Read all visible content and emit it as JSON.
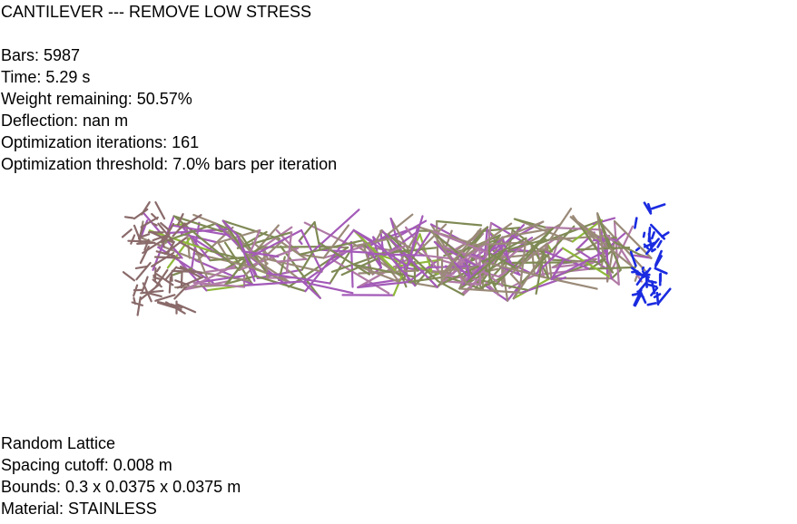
{
  "header": {
    "title": "CANTILEVER --- REMOVE LOW STRESS"
  },
  "stats": {
    "bars": "Bars: 5987",
    "time": "Time: 5.29 s",
    "weight": "Weight remaining: 50.57%",
    "deflection": "Deflection: nan m",
    "iterations": "Optimization iterations: 161",
    "threshold": "Optimization threshold: 7.0% bars per iteration"
  },
  "footer": {
    "lattice": "Random Lattice",
    "spacing": "Spacing cutoff: 0.008 m",
    "bounds": "Bounds: 0.3 x 0.0375 x 0.0375 m",
    "material": "Material: STAINLESS"
  },
  "colors": {
    "background": "#ffffff",
    "fixed_end": "#8a6a6a",
    "bar_olive": "#7f8a55",
    "bar_tan": "#9a8a78",
    "bar_magenta": "#a35ab8",
    "bar_pink": "#b07aa6",
    "bar_green": "#8fb83a",
    "load_end": "#1a2be0"
  }
}
